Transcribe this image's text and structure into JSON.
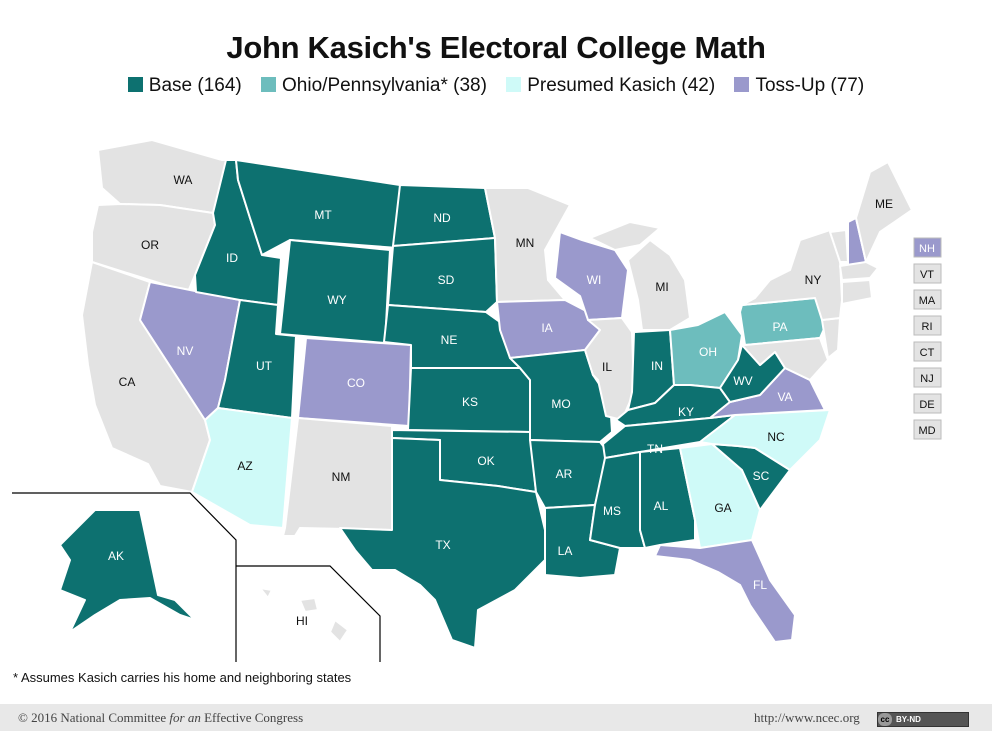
{
  "title": "John Kasich's Electoral College Math",
  "legend": [
    {
      "label": "Base (164)",
      "color": "#0d7170"
    },
    {
      "label": "Ohio/Pennsylvania* (38)",
      "color": "#6dbdbd"
    },
    {
      "label": "Presumed Kasich (42)",
      "color": "#cffaf8"
    },
    {
      "label": "Toss-Up (77)",
      "color": "#9a99cc"
    }
  ],
  "colors": {
    "base": "#0d7170",
    "ohpa": "#6dbdbd",
    "presumed": "#cffaf8",
    "tossup": "#9a99cc",
    "other": "#e3e3e3"
  },
  "states": {
    "WA": "WA",
    "OR": "OR",
    "CA": "CA",
    "NV": "NV",
    "ID": "ID",
    "MT": "MT",
    "WY": "WY",
    "UT": "UT",
    "AZ": "AZ",
    "CO": "CO",
    "NM": "NM",
    "ND": "ND",
    "SD": "SD",
    "NE": "NE",
    "KS": "KS",
    "OK": "OK",
    "TX": "TX",
    "MN": "MN",
    "IA": "IA",
    "MO": "MO",
    "AR": "AR",
    "LA": "LA",
    "WI": "WI",
    "IL": "IL",
    "MI": "MI",
    "IN": "IN",
    "OH": "OH",
    "KY": "KY",
    "TN": "TN",
    "MS": "MS",
    "AL": "AL",
    "GA": "GA",
    "FL": "FL",
    "SC": "SC",
    "NC": "NC",
    "VA": "VA",
    "WV": "WV",
    "PA": "PA",
    "NY": "NY",
    "ME": "ME",
    "AK": "AK",
    "HI": "HI"
  },
  "small_states": [
    "NH",
    "VT",
    "MA",
    "RI",
    "CT",
    "NJ",
    "DE",
    "MD"
  ],
  "footnote": "* Assumes Kasich carries his home and neighboring states",
  "footer": {
    "copyright_pre": "© 2016 National Committee ",
    "copyright_italic": "for an",
    "copyright_post": " Effective Congress",
    "url": "http://www.ncec.org",
    "license": "BY-ND"
  }
}
